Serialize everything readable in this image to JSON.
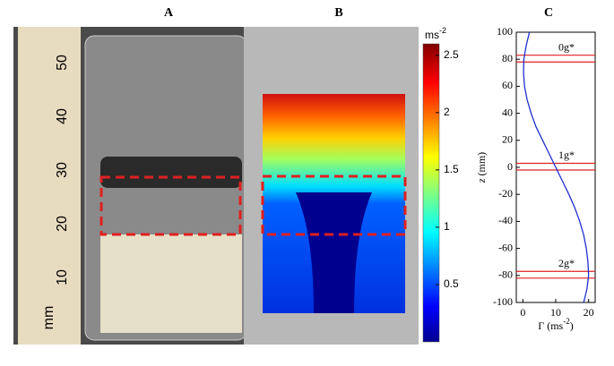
{
  "panels": [
    {
      "label": "A"
    },
    {
      "label": "B"
    },
    {
      "label": "C"
    }
  ],
  "ruler": {
    "unit": "mm",
    "labels": [
      50,
      40,
      30,
      20,
      10
    ]
  },
  "colorbar": {
    "title": "ms",
    "title_sup": "-2",
    "lim": [
      0,
      2.6
    ],
    "ticks": [
      0.5,
      1,
      1.5,
      2,
      2.5
    ]
  },
  "chart_data": [
    {
      "type": "line",
      "ylabel": "z",
      "ylabel_unit": "(mm)",
      "xlabel": "Γ (ms",
      "xlabel_sup": "-2",
      "xlabel_end": ")",
      "xlim": [
        -2,
        22
      ],
      "xticks": [
        0,
        10,
        20
      ],
      "ylim": [
        -100,
        100
      ],
      "yticks": [
        -100,
        -80,
        -60,
        -40,
        -20,
        0,
        20,
        40,
        60,
        80,
        100
      ],
      "series": [
        {
          "color": "#1f2fd0",
          "x": [
            2,
            1,
            0.3,
            0.2,
            0.5,
            1.3,
            2.5,
            4,
            6,
            8,
            10,
            12,
            14,
            15.8,
            17.3,
            18.5,
            19.3,
            19.8,
            20,
            19.5,
            18.5
          ],
          "y": [
            100,
            90,
            80,
            70,
            60,
            50,
            40,
            30,
            20,
            10,
            0,
            -10,
            -20,
            -30,
            -40,
            -50,
            -60,
            -70,
            -80,
            -90,
            -100
          ]
        }
      ],
      "hlines": [
        83,
        78,
        3,
        -2,
        -77,
        -82
      ],
      "hline_color": "#e02020",
      "annotations": [
        "0g*",
        "1g*",
        "2g*"
      ]
    }
  ]
}
